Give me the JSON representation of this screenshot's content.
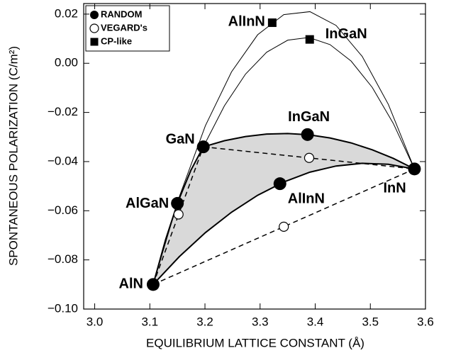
{
  "chart_data": {
    "type": "scatter",
    "xlabel": "EQUILIBRIUM LATTICE CONSTANT (Å)",
    "ylabel": "SPONTANEOUS POLARIZATION (C/m²)",
    "xlim": [
      2.98,
      3.6
    ],
    "xticks": [
      {
        "value": 3.0,
        "label": "3.0"
      },
      {
        "value": 3.1,
        "label": "3.1"
      },
      {
        "value": 3.2,
        "label": "3.2"
      },
      {
        "value": 3.3,
        "label": "3.3"
      },
      {
        "value": 3.4,
        "label": "3.4"
      },
      {
        "value": 3.5,
        "label": "3.5"
      },
      {
        "value": 3.6,
        "label": "3.6"
      }
    ],
    "ylim": [
      -0.1,
      0.0243
    ],
    "yticks": [
      {
        "value": -0.1,
        "label": "−0.10"
      },
      {
        "value": -0.08,
        "label": "−0.08"
      },
      {
        "value": -0.06,
        "label": "−0.06"
      },
      {
        "value": -0.04,
        "label": "−0.04"
      },
      {
        "value": -0.02,
        "label": "−0.02"
      },
      {
        "value": 0,
        "label": "0.00"
      },
      {
        "value": 0.02,
        "label": "0.02"
      }
    ],
    "grid": false,
    "legend": "upper left",
    "fill_color": "#d9d9d9",
    "series": [
      {
        "name": "RANDOM",
        "marker": "circle-filled",
        "color": "#000000",
        "x": [
          3.106,
          3.197,
          3.58,
          3.15,
          3.386,
          3.336
        ],
        "values": [
          -0.09,
          -0.034,
          -0.043,
          -0.057,
          -0.029,
          -0.049
        ],
        "labels": [
          "AlN",
          "GaN",
          "InN",
          "AlGaN",
          "InGaN",
          "AlInN"
        ]
      },
      {
        "name": "VEGARD's",
        "marker": "circle-open",
        "color": "#000000",
        "x": [
          3.152,
          3.389,
          3.343
        ],
        "values": [
          -0.0615,
          -0.0385,
          -0.0665
        ]
      },
      {
        "name": "CP-like",
        "marker": "square",
        "color": "#000000",
        "x": [
          3.322,
          3.39
        ],
        "values": [
          0.0165,
          0.0097
        ],
        "labels": [
          "AlInN",
          "InGaN"
        ]
      }
    ],
    "curves": [
      {
        "style": "thin",
        "color": "#000000",
        "x": [
          3.106,
          3.1534,
          3.2008,
          3.2482,
          3.2956,
          3.343,
          3.3904,
          3.4378,
          3.4852,
          3.5326,
          3.58
        ],
        "values": [
          -0.09,
          -0.0543,
          -0.0254,
          -0.0035,
          0.0116,
          0.0198,
          0.021,
          0.0154,
          0.0028,
          -0.0167,
          -0.043
        ]
      },
      {
        "style": "thin",
        "color": "#000000",
        "x": [
          3.197,
          3.2353,
          3.2736,
          3.3119,
          3.3502,
          3.3885,
          3.4268,
          3.4651,
          3.5034,
          3.5417,
          3.58
        ],
        "values": [
          -0.034,
          -0.0173,
          -0.0044,
          0.0045,
          0.0094,
          0.0105,
          0.0076,
          0.0009,
          -0.0098,
          -0.0245,
          -0.043
        ]
      },
      {
        "style": "thick",
        "color": "#000000",
        "x": [
          3.197,
          3.2353,
          3.2736,
          3.3119,
          3.3502,
          3.3885,
          3.4268,
          3.4651,
          3.5034,
          3.5417,
          3.58
        ],
        "values": [
          -0.034,
          -0.0315,
          -0.0298,
          -0.0288,
          -0.0286,
          -0.0291,
          -0.0304,
          -0.0324,
          -0.0352,
          -0.0387,
          -0.043
        ]
      },
      {
        "style": "thick",
        "color": "#000000",
        "x": [
          3.106,
          3.1534,
          3.2008,
          3.2482,
          3.2956,
          3.343,
          3.3904,
          3.4378,
          3.4852,
          3.5326,
          3.58
        ],
        "values": [
          -0.09,
          -0.0787,
          -0.0689,
          -0.0606,
          -0.0537,
          -0.0483,
          -0.0443,
          -0.0418,
          -0.0407,
          -0.0411,
          -0.043
        ]
      },
      {
        "style": "thick",
        "color": "#000000",
        "x": [
          3.106,
          3.1288,
          3.1515,
          3.1743,
          3.197
        ],
        "values": [
          -0.09,
          -0.0716,
          -0.0561,
          -0.0436,
          -0.034
        ]
      },
      {
        "style": "dashed",
        "color": "#000000",
        "x": [
          3.106,
          3.197
        ],
        "values": [
          -0.09,
          -0.034
        ]
      },
      {
        "style": "dashed",
        "color": "#000000",
        "x": [
          3.197,
          3.58
        ],
        "values": [
          -0.034,
          -0.043
        ]
      },
      {
        "style": "dashed",
        "color": "#000000",
        "x": [
          3.106,
          3.58
        ],
        "values": [
          -0.09,
          -0.043
        ]
      }
    ]
  }
}
